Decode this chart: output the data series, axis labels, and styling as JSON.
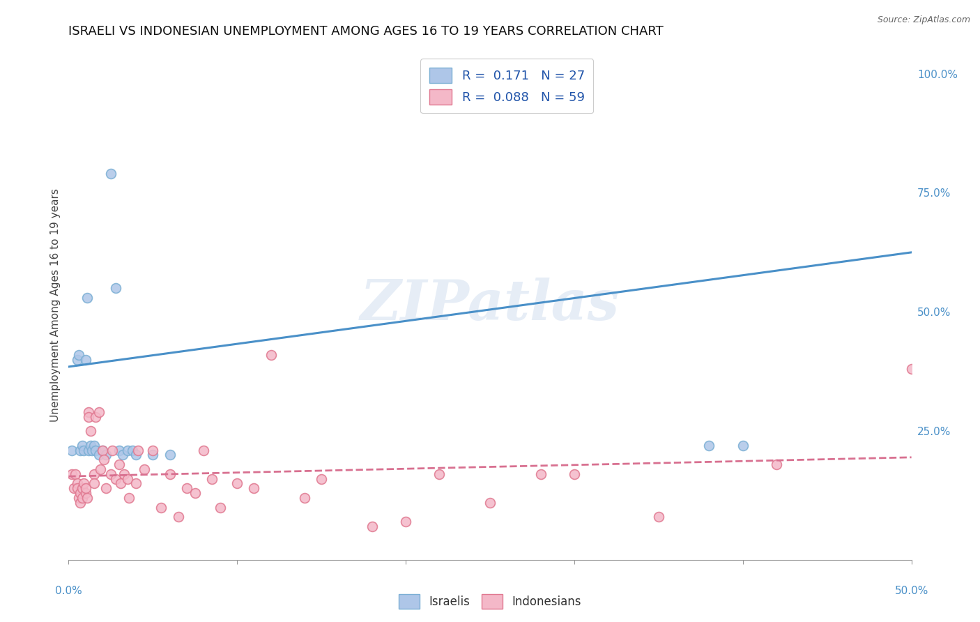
{
  "title": "ISRAELI VS INDONESIAN UNEMPLOYMENT AMONG AGES 16 TO 19 YEARS CORRELATION CHART",
  "source": "Source: ZipAtlas.com",
  "ylabel": "Unemployment Among Ages 16 to 19 years",
  "right_yticks": [
    0.0,
    0.25,
    0.5,
    0.75,
    1.0
  ],
  "right_yticklabels": [
    "",
    "25.0%",
    "50.0%",
    "75.0%",
    "100.0%"
  ],
  "legend_israeli": {
    "R": 0.171,
    "N": 27,
    "color": "#aec6e8",
    "edge": "#7bafd4"
  },
  "legend_indonesian": {
    "R": 0.088,
    "N": 59,
    "color": "#f4b8c8",
    "edge": "#e07890"
  },
  "israeli_scatter": {
    "x": [
      0.002,
      0.005,
      0.006,
      0.007,
      0.008,
      0.009,
      0.01,
      0.011,
      0.012,
      0.013,
      0.014,
      0.015,
      0.016,
      0.018,
      0.02,
      0.022,
      0.025,
      0.028,
      0.03,
      0.032,
      0.035,
      0.038,
      0.04,
      0.05,
      0.06,
      0.38,
      0.4
    ],
    "y": [
      0.21,
      0.4,
      0.41,
      0.21,
      0.22,
      0.21,
      0.4,
      0.53,
      0.21,
      0.22,
      0.21,
      0.22,
      0.21,
      0.2,
      0.21,
      0.2,
      0.79,
      0.55,
      0.21,
      0.2,
      0.21,
      0.21,
      0.2,
      0.2,
      0.2,
      0.22,
      0.22
    ],
    "color": "#aec6e8",
    "edgecolor": "#7bafd4",
    "size": 100
  },
  "indonesian_scatter": {
    "x": [
      0.002,
      0.003,
      0.004,
      0.005,
      0.005,
      0.006,
      0.007,
      0.007,
      0.008,
      0.008,
      0.009,
      0.01,
      0.01,
      0.011,
      0.012,
      0.012,
      0.013,
      0.015,
      0.015,
      0.016,
      0.018,
      0.019,
      0.02,
      0.021,
      0.022,
      0.025,
      0.026,
      0.028,
      0.03,
      0.031,
      0.033,
      0.035,
      0.036,
      0.04,
      0.041,
      0.045,
      0.05,
      0.055,
      0.06,
      0.065,
      0.07,
      0.075,
      0.08,
      0.085,
      0.09,
      0.1,
      0.11,
      0.12,
      0.14,
      0.15,
      0.18,
      0.2,
      0.22,
      0.25,
      0.28,
      0.3,
      0.35,
      0.42,
      0.5
    ],
    "y": [
      0.16,
      0.13,
      0.16,
      0.14,
      0.13,
      0.11,
      0.12,
      0.1,
      0.13,
      0.11,
      0.14,
      0.12,
      0.13,
      0.11,
      0.29,
      0.28,
      0.25,
      0.16,
      0.14,
      0.28,
      0.29,
      0.17,
      0.21,
      0.19,
      0.13,
      0.16,
      0.21,
      0.15,
      0.18,
      0.14,
      0.16,
      0.15,
      0.11,
      0.14,
      0.21,
      0.17,
      0.21,
      0.09,
      0.16,
      0.07,
      0.13,
      0.12,
      0.21,
      0.15,
      0.09,
      0.14,
      0.13,
      0.41,
      0.11,
      0.15,
      0.05,
      0.06,
      0.16,
      0.1,
      0.16,
      0.16,
      0.07,
      0.18,
      0.38
    ],
    "color": "#f4b8c8",
    "edgecolor": "#e07890",
    "size": 100
  },
  "israeli_trend": {
    "x": [
      0.0,
      0.5
    ],
    "y": [
      0.385,
      0.625
    ],
    "color": "#4a90c8",
    "linestyle": "-",
    "linewidth": 2.2
  },
  "indonesian_trend": {
    "x": [
      0.0,
      0.5
    ],
    "y": [
      0.155,
      0.195
    ],
    "color": "#d87090",
    "linestyle": "--",
    "linewidth": 2.0
  },
  "watermark": "ZIPatlas",
  "background_color": "#ffffff",
  "grid_color": "#cccccc",
  "title_fontsize": 13,
  "axis_label_fontsize": 11,
  "tick_fontsize": 11,
  "xmin": 0.0,
  "xmax": 0.5,
  "ymin": -0.02,
  "ymax": 1.05
}
